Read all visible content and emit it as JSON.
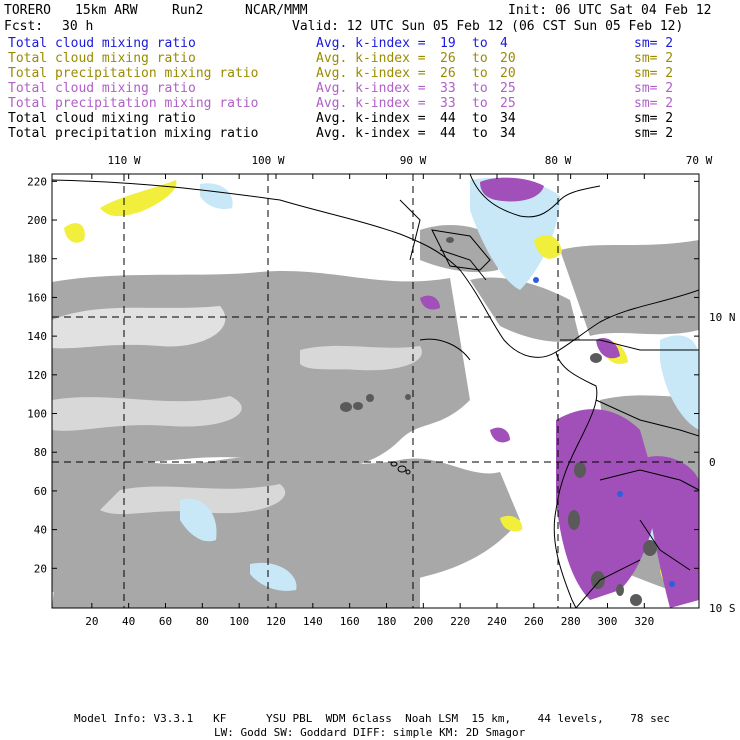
{
  "header": {
    "model": "TORERO",
    "resolution": "15km ARW",
    "run": "Run2",
    "org": "NCAR/MMM",
    "init": "Init: 06 UTC Sat 04 Feb 12",
    "fcst_label": "Fcst:",
    "fcst_value": "30 h",
    "valid": "Valid: 12 UTC Sun 05 Feb 12 (06 CST Sun 05 Feb 12)"
  },
  "legend": [
    {
      "field": "Total cloud mixing ratio",
      "index_label": "Avg. k-index =",
      "from": "19",
      "to_word": "to",
      "to": "4",
      "sm": "sm= 2",
      "color": "#1a1adc"
    },
    {
      "field": "Total cloud mixing ratio",
      "index_label": "Avg. k-index =",
      "from": "26",
      "to_word": "to",
      "to": "20",
      "sm": "sm= 2",
      "color": "#9a8c00"
    },
    {
      "field": "Total precipitation mixing ratio",
      "index_label": "Avg. k-index =",
      "from": "26",
      "to_word": "to",
      "to": "20",
      "sm": "sm= 2",
      "color": "#9a8c00"
    },
    {
      "field": "Total cloud mixing ratio",
      "index_label": "Avg. k-index =",
      "from": "33",
      "to_word": "to",
      "to": "25",
      "sm": "sm= 2",
      "color": "#b060c8"
    },
    {
      "field": "Total precipitation mixing ratio",
      "index_label": "Avg. k-index =",
      "from": "33",
      "to_word": "to",
      "to": "25",
      "sm": "sm= 2",
      "color": "#b060c8"
    },
    {
      "field": "Total cloud mixing ratio",
      "index_label": "Avg. k-index =",
      "from": "44",
      "to_word": "to",
      "to": "34",
      "sm": "sm= 2",
      "color": "#000000"
    },
    {
      "field": "Total precipitation mixing ratio",
      "index_label": "Avg. k-index =",
      "from": "44",
      "to_word": "to",
      "to": "34",
      "sm": "sm= 2",
      "color": "#000000"
    }
  ],
  "map": {
    "lon_labels": [
      "110 W",
      "100 W",
      "90 W",
      "80 W",
      "70 W"
    ],
    "lat_labels": [
      "10 N",
      "0",
      "10 S"
    ],
    "x_ticks": [
      "20",
      "40",
      "60",
      "80",
      "100",
      "120",
      "140",
      "160",
      "180",
      "200",
      "220",
      "240",
      "260",
      "280",
      "300",
      "320"
    ],
    "y_ticks": [
      "220",
      "200",
      "180",
      "160",
      "140",
      "120",
      "100",
      "80",
      "60",
      "40",
      "20"
    ],
    "colors": {
      "cloud_gray": "#a8a8a8",
      "dark_gray": "#5a5a5a",
      "yellow": "#f2ee3c",
      "light_blue": "#c8e8f8",
      "violet": "#a050b8",
      "blue": "#2a60e0"
    }
  },
  "footer": {
    "line1": "Model Info: V3.3.1   KF      YSU PBL  WDM 6class  Noah LSM  15 km,    44 levels,    78 sec",
    "line2": "LW: Godd SW: Goddard DIFF: simple KM: 2D Smagor"
  }
}
